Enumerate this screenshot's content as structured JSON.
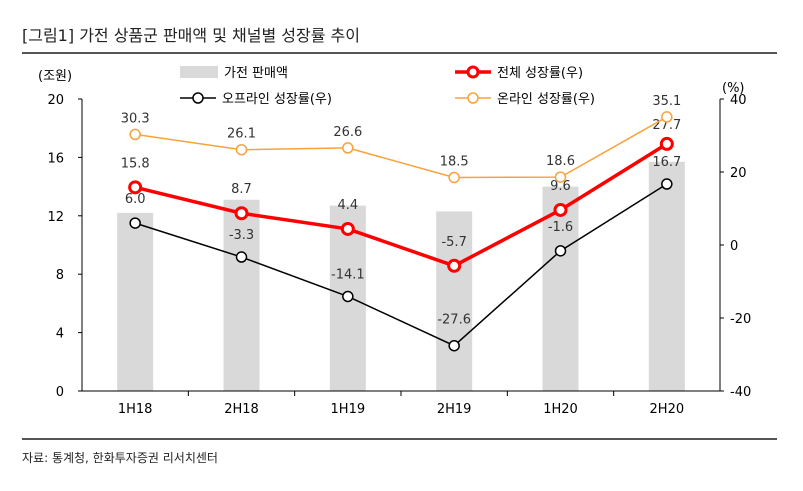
{
  "title": "[그림1]    가전 상품군 판매액 및 채널별 성장률 추이",
  "source": "자료: 통계청, 한화투자증권 리서치센터",
  "chart_data": {
    "type": "bar+line",
    "categories": [
      "1H18",
      "2H18",
      "1H19",
      "2H19",
      "1H20",
      "2H20"
    ],
    "left_axis": {
      "label": "(조원)",
      "range": [
        0,
        20
      ],
      "ticks": [
        0,
        4,
        8,
        12,
        16,
        20
      ]
    },
    "right_axis": {
      "label": "(%)",
      "range": [
        -40,
        40
      ],
      "ticks": [
        -40,
        -20,
        0,
        20,
        40
      ]
    },
    "bars": {
      "name": "가전 판매액",
      "axis": "left",
      "values": [
        12.2,
        13.1,
        12.7,
        12.3,
        14.0,
        15.7
      ],
      "color": "#d9d9d9"
    },
    "series": [
      {
        "name": "전체 성장률(우)",
        "axis": "right",
        "values": [
          15.8,
          8.7,
          4.4,
          -5.7,
          9.6,
          27.7
        ],
        "color": "#ff0000",
        "labels": [
          "15.8",
          "8.7",
          "4.4",
          "-5.7",
          "9.6",
          "27.7"
        ]
      },
      {
        "name": "오프라인 성장률(우)",
        "axis": "right",
        "values": [
          6.0,
          -3.3,
          -14.1,
          -27.6,
          -1.6,
          16.7
        ],
        "color": "#000000",
        "labels": [
          "6.0",
          "-3.3",
          "-14.1",
          "-27.6",
          "-1.6",
          "16.7"
        ]
      },
      {
        "name": "온라인 성장률(우)",
        "axis": "right",
        "values": [
          30.3,
          26.1,
          26.6,
          18.5,
          18.6,
          35.1
        ],
        "color": "#f9a23a",
        "labels": [
          "30.3",
          "26.1",
          "26.6",
          "18.5",
          "18.6",
          "35.1"
        ]
      }
    ],
    "grid": false,
    "legend": "top"
  }
}
